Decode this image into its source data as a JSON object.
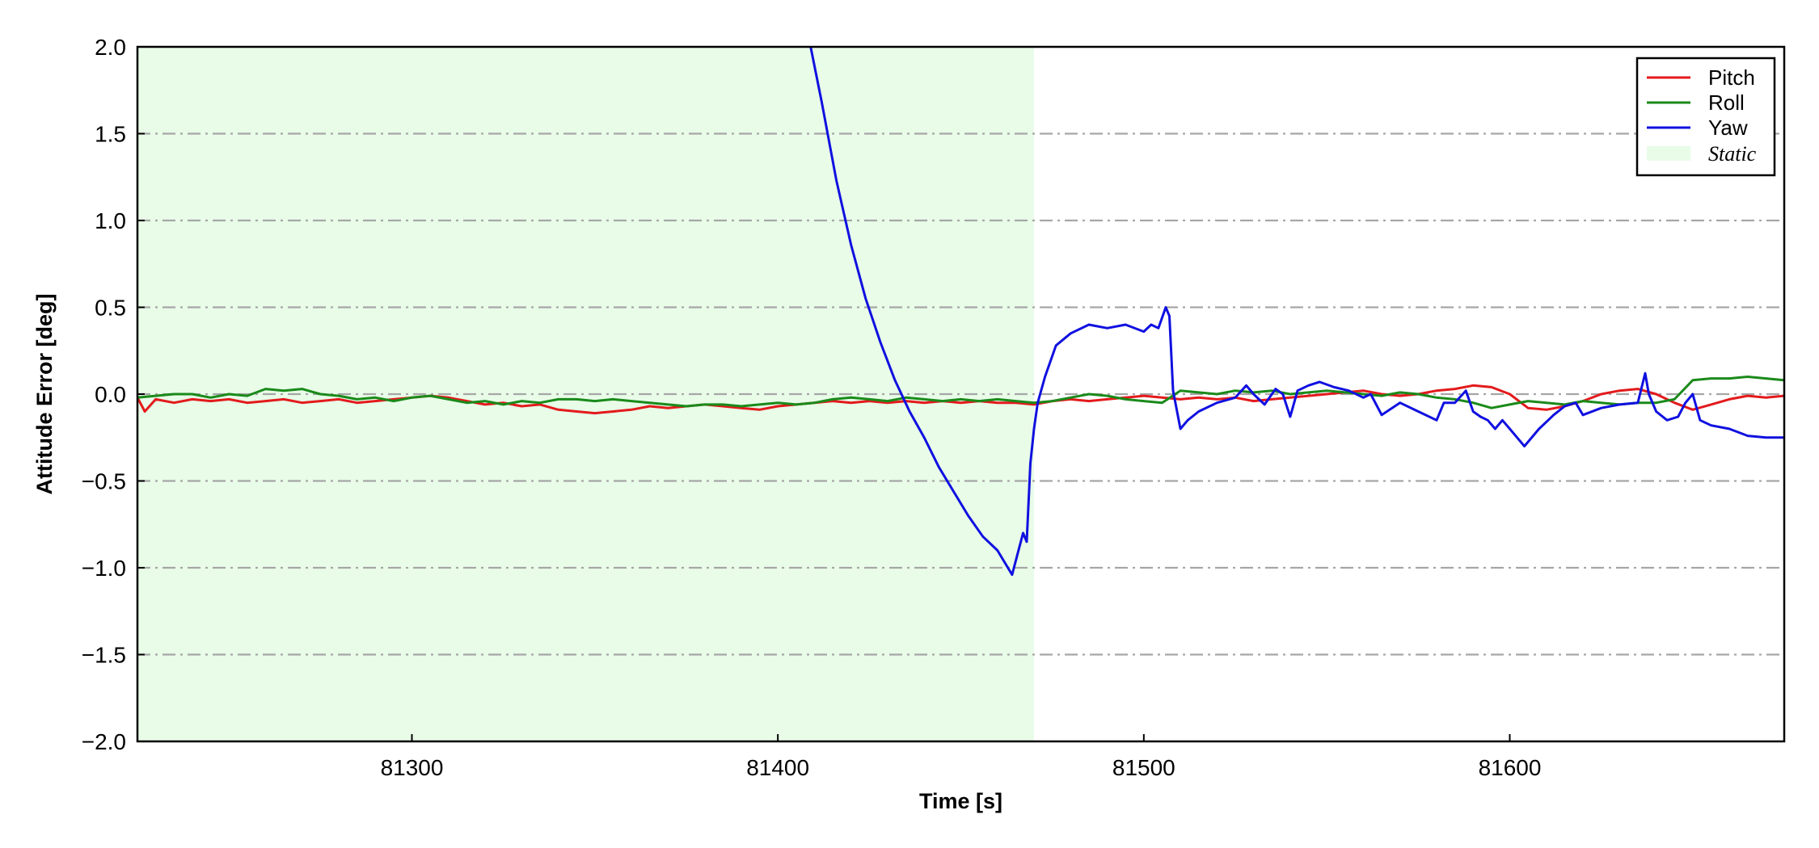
{
  "chart_data": {
    "type": "line",
    "title": "",
    "xlabel": "Time [s]",
    "ylabel": "Attitude Error [deg]",
    "xlim": [
      81225,
      81675
    ],
    "ylim": [
      -2.0,
      2.0
    ],
    "x_ticks": [
      81300,
      81400,
      81500,
      81600
    ],
    "x_tick_labels": [
      "81300",
      "81400",
      "81500",
      "81600"
    ],
    "y_ticks": [
      2.0,
      1.5,
      1.0,
      0.5,
      0.0,
      -0.5,
      -1.0,
      -1.5,
      -2.0
    ],
    "y_tick_labels": [
      "2.0",
      "1.5",
      "1.0",
      "0.5",
      "0.0",
      "−0.5",
      "−1.0",
      "−1.5",
      "−2.0"
    ],
    "grid": "horizontal dash-dot",
    "legend_position": "top-right",
    "shaded_region": {
      "name": "Static",
      "x_start": 81225,
      "x_end": 81470,
      "color": "#e8fce8"
    },
    "series": [
      {
        "name": "Pitch",
        "color": "#e31a1c",
        "x": [
          81225,
          81227,
          81230,
          81235,
          81240,
          81245,
          81250,
          81255,
          81260,
          81265,
          81270,
          81275,
          81280,
          81285,
          81290,
          81295,
          81300,
          81305,
          81310,
          81315,
          81320,
          81325,
          81330,
          81335,
          81340,
          81345,
          81350,
          81355,
          81360,
          81365,
          81370,
          81375,
          81380,
          81385,
          81390,
          81395,
          81400,
          81405,
          81410,
          81415,
          81420,
          81425,
          81430,
          81435,
          81440,
          81445,
          81450,
          81455,
          81460,
          81465,
          81470,
          81475,
          81480,
          81485,
          81490,
          81495,
          81500,
          81505,
          81510,
          81515,
          81520,
          81525,
          81530,
          81535,
          81540,
          81545,
          81550,
          81555,
          81560,
          81565,
          81570,
          81575,
          81580,
          81585,
          81590,
          81595,
          81600,
          81605,
          81610,
          81615,
          81620,
          81625,
          81630,
          81635,
          81640,
          81645,
          81650,
          81655,
          81660,
          81665,
          81670,
          81675
        ],
        "y": [
          -0.02,
          -0.1,
          -0.03,
          -0.05,
          -0.03,
          -0.04,
          -0.03,
          -0.05,
          -0.04,
          -0.03,
          -0.05,
          -0.04,
          -0.03,
          -0.05,
          -0.04,
          -0.03,
          -0.02,
          -0.01,
          -0.02,
          -0.04,
          -0.06,
          -0.05,
          -0.07,
          -0.06,
          -0.09,
          -0.1,
          -0.11,
          -0.1,
          -0.09,
          -0.07,
          -0.08,
          -0.07,
          -0.06,
          -0.07,
          -0.08,
          -0.09,
          -0.07,
          -0.06,
          -0.05,
          -0.04,
          -0.05,
          -0.04,
          -0.05,
          -0.04,
          -0.05,
          -0.04,
          -0.05,
          -0.04,
          -0.05,
          -0.05,
          -0.06,
          -0.04,
          -0.03,
          -0.04,
          -0.03,
          -0.02,
          -0.01,
          -0.02,
          -0.03,
          -0.02,
          -0.03,
          -0.02,
          -0.04,
          -0.03,
          -0.02,
          -0.01,
          0.0,
          0.01,
          0.02,
          0.0,
          -0.01,
          0.0,
          0.02,
          0.03,
          0.05,
          0.04,
          0.0,
          -0.08,
          -0.09,
          -0.07,
          -0.04,
          0.0,
          0.02,
          0.03,
          0.0,
          -0.05,
          -0.09,
          -0.06,
          -0.03,
          -0.01,
          -0.02,
          -0.01
        ]
      },
      {
        "name": "Roll",
        "color": "#1a8a1a",
        "x": [
          81225,
          81230,
          81235,
          81240,
          81245,
          81250,
          81255,
          81260,
          81265,
          81270,
          81275,
          81280,
          81285,
          81290,
          81295,
          81300,
          81305,
          81310,
          81315,
          81320,
          81325,
          81330,
          81335,
          81340,
          81345,
          81350,
          81355,
          81360,
          81365,
          81370,
          81375,
          81380,
          81385,
          81390,
          81395,
          81400,
          81405,
          81410,
          81415,
          81420,
          81425,
          81430,
          81435,
          81440,
          81445,
          81450,
          81455,
          81460,
          81465,
          81470,
          81475,
          81480,
          81485,
          81490,
          81495,
          81500,
          81505,
          81510,
          81515,
          81520,
          81525,
          81530,
          81535,
          81540,
          81545,
          81550,
          81555,
          81560,
          81565,
          81570,
          81575,
          81580,
          81585,
          81590,
          81595,
          81600,
          81605,
          81610,
          81615,
          81620,
          81625,
          81630,
          81635,
          81640,
          81645,
          81650,
          81655,
          81660,
          81665,
          81670,
          81675
        ],
        "y": [
          -0.02,
          -0.01,
          0.0,
          0.0,
          -0.02,
          0.0,
          -0.01,
          0.03,
          0.02,
          0.03,
          0.0,
          -0.01,
          -0.03,
          -0.02,
          -0.04,
          -0.02,
          -0.01,
          -0.03,
          -0.05,
          -0.04,
          -0.06,
          -0.04,
          -0.05,
          -0.03,
          -0.03,
          -0.04,
          -0.03,
          -0.04,
          -0.05,
          -0.06,
          -0.07,
          -0.06,
          -0.06,
          -0.07,
          -0.06,
          -0.05,
          -0.06,
          -0.05,
          -0.03,
          -0.02,
          -0.03,
          -0.04,
          -0.02,
          -0.03,
          -0.04,
          -0.03,
          -0.04,
          -0.03,
          -0.04,
          -0.05,
          -0.04,
          -0.02,
          0.0,
          -0.01,
          -0.03,
          -0.04,
          -0.05,
          0.02,
          0.01,
          0.0,
          0.02,
          0.01,
          0.02,
          0.0,
          0.01,
          0.02,
          0.01,
          0.0,
          -0.01,
          0.01,
          0.0,
          -0.02,
          -0.03,
          -0.05,
          -0.08,
          -0.06,
          -0.04,
          -0.05,
          -0.06,
          -0.04,
          -0.05,
          -0.06,
          -0.05,
          -0.05,
          -0.03,
          0.08,
          0.09,
          0.09,
          0.1,
          0.09,
          0.08
        ]
      },
      {
        "name": "Yaw",
        "color": "#1010e0",
        "x": [
          81408,
          81412,
          81416,
          81420,
          81424,
          81428,
          81432,
          81436,
          81440,
          81444,
          81448,
          81452,
          81456,
          81460,
          81464,
          81467,
          81468,
          81469,
          81470,
          81471,
          81473,
          81476,
          81480,
          81485,
          81490,
          81495,
          81500,
          81502,
          81504,
          81506,
          81507,
          81508,
          81510,
          81512,
          81515,
          81520,
          81525,
          81528,
          81530,
          81533,
          81536,
          81538,
          81540,
          81542,
          81545,
          81548,
          81552,
          81556,
          81560,
          81562,
          81565,
          81570,
          81575,
          81580,
          81582,
          81585,
          81588,
          81590,
          81592,
          81594,
          81596,
          81598,
          81600,
          81602,
          81604,
          81608,
          81612,
          81615,
          81618,
          81620,
          81625,
          81630,
          81635,
          81637,
          81638,
          81640,
          81643,
          81646,
          81648,
          81650,
          81652,
          81655,
          81660,
          81665,
          81670,
          81675
        ],
        "y": [
          2.1,
          1.68,
          1.23,
          0.86,
          0.55,
          0.3,
          0.08,
          -0.1,
          -0.25,
          -0.42,
          -0.56,
          -0.7,
          -0.82,
          -0.9,
          -1.04,
          -0.8,
          -0.85,
          -0.4,
          -0.2,
          -0.05,
          0.1,
          0.28,
          0.35,
          0.4,
          0.38,
          0.4,
          0.36,
          0.4,
          0.38,
          0.5,
          0.45,
          0.02,
          -0.2,
          -0.15,
          -0.1,
          -0.05,
          -0.02,
          0.05,
          0.0,
          -0.06,
          0.03,
          0.0,
          -0.13,
          0.02,
          0.05,
          0.07,
          0.04,
          0.02,
          -0.02,
          0.0,
          -0.12,
          -0.05,
          -0.1,
          -0.15,
          -0.05,
          -0.05,
          0.02,
          -0.1,
          -0.13,
          -0.15,
          -0.2,
          -0.15,
          -0.2,
          -0.25,
          -0.3,
          -0.2,
          -0.12,
          -0.07,
          -0.05,
          -0.12,
          -0.08,
          -0.06,
          -0.05,
          0.12,
          0.0,
          -0.1,
          -0.15,
          -0.13,
          -0.05,
          0.0,
          -0.15,
          -0.18,
          -0.2,
          -0.24,
          -0.25,
          -0.25
        ]
      }
    ]
  }
}
